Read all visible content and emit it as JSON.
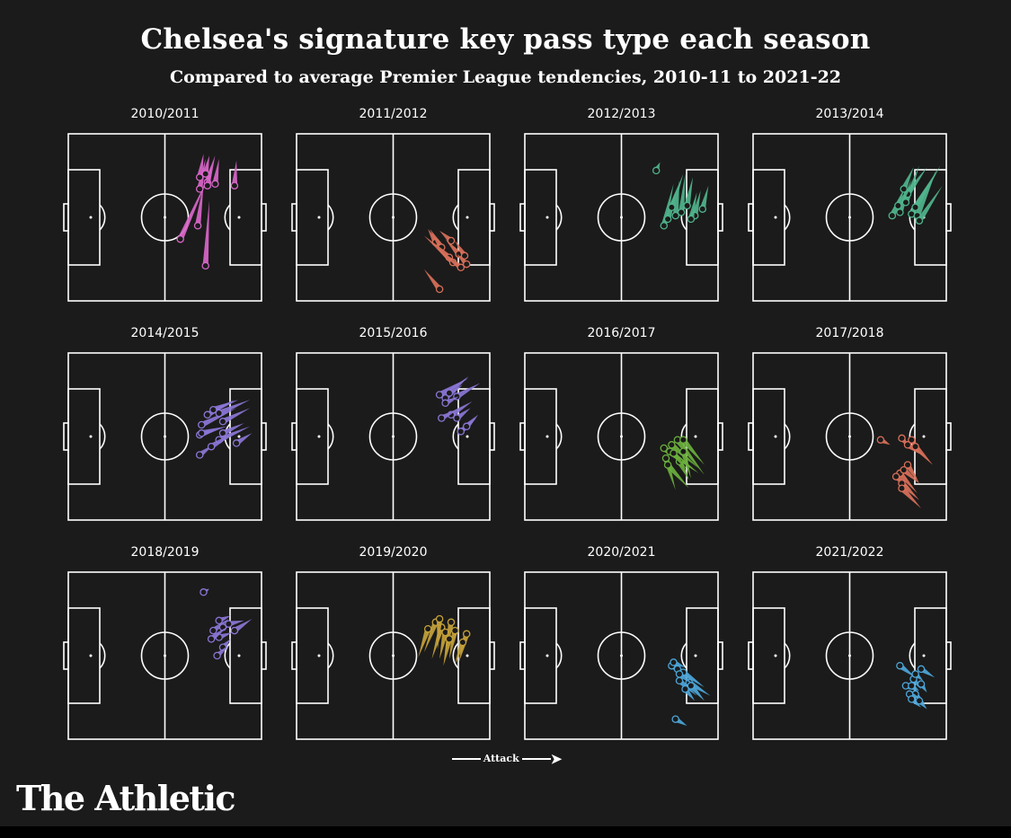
{
  "chart_data": {
    "type": "scatter",
    "title": "Chelsea's signature key pass type each season",
    "subtitle": "Compared to average Premier League tendencies, 2010-11 to 2021-22",
    "direction_label": "Attack",
    "note": "small-multiple pitch maps; each pass drawn as a tapered line from start (circle) toward end point; coordinates in pitch units x 0-100 (own goal to opponent goal), y 0-100 (top to bottom)",
    "panels": [
      {
        "season": "2010/2011",
        "color": "#d966c9",
        "passes": [
          {
            "x": 58,
            "y": 63,
            "ex": 72,
            "ey": 27
          },
          {
            "x": 67,
            "y": 55,
            "ex": 70,
            "ey": 30
          },
          {
            "x": 72,
            "y": 29,
            "ex": 76,
            "ey": 13
          },
          {
            "x": 68,
            "y": 33,
            "ex": 71,
            "ey": 15
          },
          {
            "x": 72,
            "y": 31,
            "ex": 74,
            "ey": 19
          },
          {
            "x": 76,
            "y": 30,
            "ex": 78,
            "ey": 15
          },
          {
            "x": 68,
            "y": 26,
            "ex": 70,
            "ey": 12
          },
          {
            "x": 71,
            "y": 24,
            "ex": 73,
            "ey": 13
          },
          {
            "x": 86,
            "y": 31,
            "ex": 87,
            "ey": 16
          },
          {
            "x": 71,
            "y": 79,
            "ex": 73,
            "ey": 40
          }
        ]
      },
      {
        "season": "2011/2012",
        "color": "#d9705a",
        "passes": [
          {
            "x": 72,
            "y": 65,
            "ex": 68,
            "ey": 57
          },
          {
            "x": 75,
            "y": 68,
            "ex": 69,
            "ey": 57
          },
          {
            "x": 80,
            "y": 64,
            "ex": 74,
            "ey": 58
          },
          {
            "x": 84,
            "y": 72,
            "ex": 77,
            "ey": 63
          },
          {
            "x": 79,
            "y": 74,
            "ex": 66,
            "ey": 61
          },
          {
            "x": 87,
            "y": 73,
            "ex": 82,
            "ey": 64
          },
          {
            "x": 81,
            "y": 77,
            "ex": 72,
            "ey": 68
          },
          {
            "x": 85,
            "y": 80,
            "ex": 76,
            "ey": 72
          },
          {
            "x": 88,
            "y": 78,
            "ex": 83,
            "ey": 72
          },
          {
            "x": 74,
            "y": 93,
            "ex": 66,
            "ey": 81
          }
        ]
      },
      {
        "season": "2012/2013",
        "color": "#4fb48c",
        "passes": [
          {
            "x": 68,
            "y": 22,
            "ex": 70,
            "ey": 17
          },
          {
            "x": 72,
            "y": 55,
            "ex": 77,
            "ey": 30
          },
          {
            "x": 74,
            "y": 51,
            "ex": 79,
            "ey": 32
          },
          {
            "x": 78,
            "y": 49,
            "ex": 80,
            "ey": 28
          },
          {
            "x": 81,
            "y": 47,
            "ex": 83,
            "ey": 24
          },
          {
            "x": 88,
            "y": 49,
            "ex": 91,
            "ey": 34
          },
          {
            "x": 76,
            "y": 44,
            "ex": 82,
            "ey": 24
          },
          {
            "x": 84,
            "y": 43,
            "ex": 87,
            "ey": 26
          },
          {
            "x": 92,
            "y": 45,
            "ex": 95,
            "ey": 31
          },
          {
            "x": 86,
            "y": 51,
            "ex": 89,
            "ey": 35
          }
        ]
      },
      {
        "season": "2013/2014",
        "color": "#4fb48c",
        "passes": [
          {
            "x": 72,
            "y": 49,
            "ex": 79,
            "ey": 31
          },
          {
            "x": 76,
            "y": 47,
            "ex": 82,
            "ey": 27
          },
          {
            "x": 79,
            "y": 41,
            "ex": 86,
            "ey": 19
          },
          {
            "x": 80,
            "y": 36,
            "ex": 90,
            "ey": 20
          },
          {
            "x": 82,
            "y": 48,
            "ex": 93,
            "ey": 26
          },
          {
            "x": 85,
            "y": 49,
            "ex": 95,
            "ey": 21
          },
          {
            "x": 84,
            "y": 44,
            "ex": 97,
            "ey": 19
          },
          {
            "x": 86,
            "y": 52,
            "ex": 98,
            "ey": 31
          },
          {
            "x": 78,
            "y": 33,
            "ex": 83,
            "ey": 20
          },
          {
            "x": 75,
            "y": 43,
            "ex": 83,
            "ey": 29
          }
        ]
      },
      {
        "season": "2014/2015",
        "color": "#8b76d6",
        "passes": [
          {
            "x": 69,
            "y": 43,
            "ex": 87,
            "ey": 33
          },
          {
            "x": 72,
            "y": 37,
            "ex": 86,
            "ey": 28
          },
          {
            "x": 75,
            "y": 34,
            "ex": 88,
            "ey": 28
          },
          {
            "x": 78,
            "y": 36,
            "ex": 94,
            "ey": 28
          },
          {
            "x": 80,
            "y": 41,
            "ex": 94,
            "ey": 33
          },
          {
            "x": 80,
            "y": 48,
            "ex": 91,
            "ey": 42
          },
          {
            "x": 78,
            "y": 52,
            "ex": 94,
            "ey": 44
          },
          {
            "x": 87,
            "y": 54,
            "ex": 95,
            "ey": 48
          },
          {
            "x": 68,
            "y": 49,
            "ex": 77,
            "ey": 46
          },
          {
            "x": 68,
            "y": 61,
            "ex": 75,
            "ey": 55
          },
          {
            "x": 74,
            "y": 56,
            "ex": 87,
            "ey": 47
          },
          {
            "x": 69,
            "y": 48,
            "ex": 82,
            "ey": 44
          }
        ]
      },
      {
        "season": "2015/2016",
        "color": "#8b76d6",
        "passes": [
          {
            "x": 74,
            "y": 25,
            "ex": 89,
            "ey": 15
          },
          {
            "x": 77,
            "y": 27,
            "ex": 86,
            "ey": 19
          },
          {
            "x": 79,
            "y": 24,
            "ex": 89,
            "ey": 14
          },
          {
            "x": 83,
            "y": 26,
            "ex": 95,
            "ey": 18
          },
          {
            "x": 77,
            "y": 30,
            "ex": 84,
            "ey": 26
          },
          {
            "x": 80,
            "y": 37,
            "ex": 91,
            "ey": 29
          },
          {
            "x": 75,
            "y": 39,
            "ex": 83,
            "ey": 34
          },
          {
            "x": 85,
            "y": 47,
            "ex": 93,
            "ey": 39
          },
          {
            "x": 88,
            "y": 44,
            "ex": 94,
            "ey": 37
          },
          {
            "x": 83,
            "y": 39,
            "ex": 90,
            "ey": 33
          }
        ]
      },
      {
        "season": "2016/2017",
        "color": "#6aaf3d",
        "passes": [
          {
            "x": 72,
            "y": 57,
            "ex": 90,
            "ey": 72
          },
          {
            "x": 75,
            "y": 59,
            "ex": 89,
            "ey": 71
          },
          {
            "x": 76,
            "y": 55,
            "ex": 90,
            "ey": 69
          },
          {
            "x": 79,
            "y": 52,
            "ex": 93,
            "ey": 73
          },
          {
            "x": 82,
            "y": 52,
            "ex": 93,
            "ey": 67
          },
          {
            "x": 82,
            "y": 59,
            "ex": 86,
            "ey": 75
          },
          {
            "x": 73,
            "y": 63,
            "ex": 78,
            "ey": 82
          },
          {
            "x": 74,
            "y": 67,
            "ex": 85,
            "ey": 81
          },
          {
            "x": 80,
            "y": 65,
            "ex": 85,
            "ey": 76
          },
          {
            "x": 77,
            "y": 60,
            "ex": 84,
            "ey": 70
          }
        ]
      },
      {
        "season": "2017/2018",
        "color": "#d9705a",
        "passes": [
          {
            "x": 66,
            "y": 52,
            "ex": 71,
            "ey": 55
          },
          {
            "x": 77,
            "y": 51,
            "ex": 81,
            "ey": 57
          },
          {
            "x": 82,
            "y": 52,
            "ex": 86,
            "ey": 58
          },
          {
            "x": 80,
            "y": 55,
            "ex": 89,
            "ey": 62
          },
          {
            "x": 84,
            "y": 56,
            "ex": 93,
            "ey": 67
          },
          {
            "x": 80,
            "y": 67,
            "ex": 86,
            "ey": 78
          },
          {
            "x": 76,
            "y": 72,
            "ex": 85,
            "ey": 84
          },
          {
            "x": 74,
            "y": 74,
            "ex": 82,
            "ey": 82
          },
          {
            "x": 77,
            "y": 78,
            "ex": 86,
            "ey": 88
          },
          {
            "x": 78,
            "y": 70,
            "ex": 86,
            "ey": 78
          },
          {
            "x": 77,
            "y": 81,
            "ex": 87,
            "ey": 93
          }
        ]
      },
      {
        "season": "2018/2019",
        "color": "#8b76d6",
        "passes": [
          {
            "x": 70,
            "y": 12,
            "ex": 73,
            "ey": 10
          },
          {
            "x": 75,
            "y": 35,
            "ex": 83,
            "ey": 28
          },
          {
            "x": 78,
            "y": 29,
            "ex": 84,
            "ey": 26
          },
          {
            "x": 80,
            "y": 33,
            "ex": 86,
            "ey": 30
          },
          {
            "x": 83,
            "y": 31,
            "ex": 91,
            "ey": 29
          },
          {
            "x": 86,
            "y": 35,
            "ex": 95,
            "ey": 28
          },
          {
            "x": 78,
            "y": 39,
            "ex": 85,
            "ey": 36
          },
          {
            "x": 80,
            "y": 45,
            "ex": 84,
            "ey": 40
          },
          {
            "x": 77,
            "y": 50,
            "ex": 83,
            "ey": 44
          },
          {
            "x": 74,
            "y": 40,
            "ex": 82,
            "ey": 33
          }
        ]
      },
      {
        "season": "2019/2020",
        "color": "#c6a23a",
        "passes": [
          {
            "x": 68,
            "y": 34,
            "ex": 63,
            "ey": 51
          },
          {
            "x": 72,
            "y": 30,
            "ex": 66,
            "ey": 48
          },
          {
            "x": 75,
            "y": 33,
            "ex": 70,
            "ey": 52
          },
          {
            "x": 77,
            "y": 36,
            "ex": 74,
            "ey": 52
          },
          {
            "x": 80,
            "y": 30,
            "ex": 77,
            "ey": 49
          },
          {
            "x": 82,
            "y": 35,
            "ex": 79,
            "ey": 52
          },
          {
            "x": 74,
            "y": 28,
            "ex": 73,
            "ey": 46
          },
          {
            "x": 88,
            "y": 37,
            "ex": 84,
            "ey": 54
          },
          {
            "x": 86,
            "y": 42,
            "ex": 82,
            "ey": 55
          },
          {
            "x": 79,
            "y": 40,
            "ex": 76,
            "ey": 56
          }
        ]
      },
      {
        "season": "2020/2021",
        "color": "#4da6d9",
        "passes": [
          {
            "x": 76,
            "y": 56,
            "ex": 86,
            "ey": 63
          },
          {
            "x": 79,
            "y": 58,
            "ex": 86,
            "ey": 64
          },
          {
            "x": 80,
            "y": 65,
            "ex": 89,
            "ey": 74
          },
          {
            "x": 82,
            "y": 60,
            "ex": 93,
            "ey": 69
          },
          {
            "x": 85,
            "y": 66,
            "ex": 96,
            "ey": 74
          },
          {
            "x": 83,
            "y": 70,
            "ex": 88,
            "ey": 77
          },
          {
            "x": 86,
            "y": 68,
            "ex": 93,
            "ey": 77
          },
          {
            "x": 77,
            "y": 54,
            "ex": 83,
            "ey": 57
          },
          {
            "x": 78,
            "y": 88,
            "ex": 84,
            "ey": 92
          },
          {
            "x": 80,
            "y": 61,
            "ex": 87,
            "ey": 67
          }
        ]
      },
      {
        "season": "2021/2022",
        "color": "#4da6d9",
        "passes": [
          {
            "x": 76,
            "y": 56,
            "ex": 84,
            "ey": 63
          },
          {
            "x": 79,
            "y": 68,
            "ex": 85,
            "ey": 71
          },
          {
            "x": 82,
            "y": 68,
            "ex": 86,
            "ey": 71
          },
          {
            "x": 84,
            "y": 73,
            "ex": 89,
            "ey": 79
          },
          {
            "x": 86,
            "y": 77,
            "ex": 90,
            "ey": 82
          },
          {
            "x": 81,
            "y": 73,
            "ex": 86,
            "ey": 75
          },
          {
            "x": 83,
            "y": 64,
            "ex": 87,
            "ey": 70
          },
          {
            "x": 84,
            "y": 61,
            "ex": 88,
            "ey": 65
          },
          {
            "x": 87,
            "y": 58,
            "ex": 94,
            "ey": 63
          },
          {
            "x": 82,
            "y": 76,
            "ex": 87,
            "ey": 81
          },
          {
            "x": 87,
            "y": 67,
            "ex": 90,
            "ey": 72
          }
        ]
      }
    ]
  },
  "brand": {
    "logo_text": "The Athletic"
  }
}
